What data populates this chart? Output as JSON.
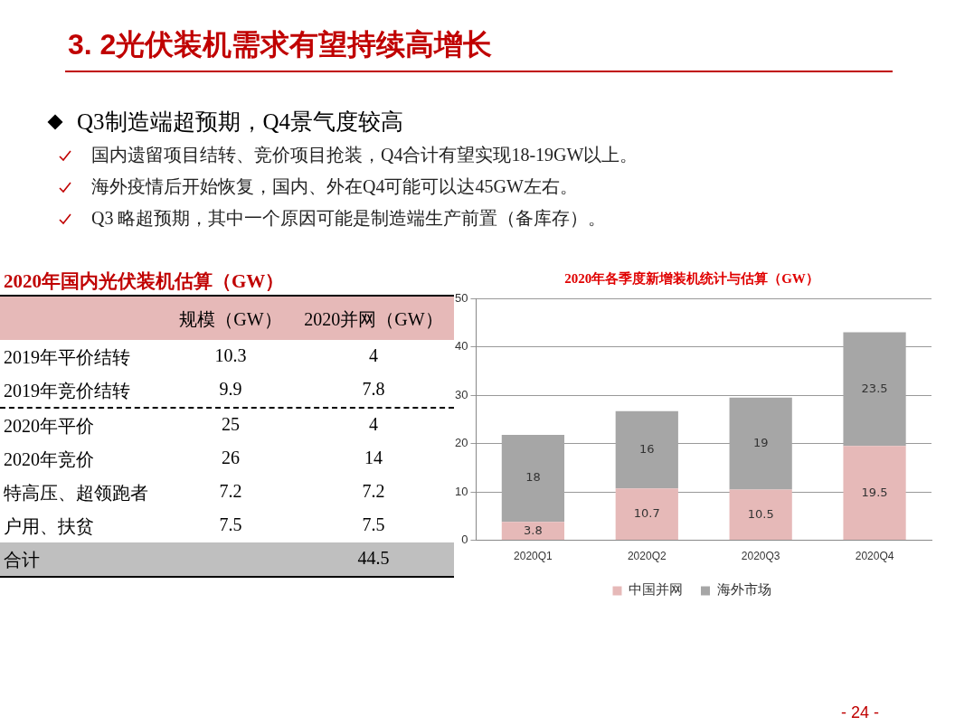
{
  "chart_data": [
    {
      "type": "other",
      "title": "3. 2光伏装机需求有望持续高增长",
      "subtitle": "Q3制造端超预期，Q4景气度较高",
      "annotations": [
        "国内遗留项目结转、竞价项目抢装，Q4合计有望实现18-19GW以上。",
        "海外疫情后开始恢复，国内、外在Q4可能可以达45GW左右。",
        "Q3 略超预期，其中一个原因可能是制造端生产前置（备库存）。",
        "- 24 -"
      ]
    },
    {
      "type": "other",
      "title": "2020年国内光伏装机估算（GW）",
      "categories": [
        "2019年平价结转",
        "2019年竞价结转",
        "2020年平价",
        "2020年竞价",
        "特高压、超领跑者",
        "户用、扶贫",
        "合计"
      ],
      "series": [
        {
          "name": "规模（GW）",
          "values": [
            10.3,
            9.9,
            25,
            26,
            7.2,
            7.5,
            null
          ]
        },
        {
          "name": "2020并网（GW）",
          "values": [
            4,
            7.8,
            4,
            14,
            7.2,
            7.5,
            44.5
          ]
        }
      ],
      "data_labels": true
    },
    {
      "type": "bar",
      "title": "2020年各季度新增装机统计与估算（GW）",
      "stacked": true,
      "categories": [
        "2020Q1",
        "2020Q2",
        "2020Q3",
        "2020Q4"
      ],
      "series": [
        {
          "name": "中国并网",
          "color": "#e6b9b8",
          "values": [
            3.8,
            10.7,
            10.5,
            19.5
          ]
        },
        {
          "name": "海外市场",
          "color": "#a6a6a6",
          "values": [
            18,
            16,
            19,
            23.5
          ]
        }
      ],
      "ylim": [
        0,
        50
      ],
      "yticks": [
        0,
        10,
        20,
        30,
        40,
        50
      ],
      "grid": "y",
      "legend": "bottom",
      "data_labels": true
    }
  ]
}
